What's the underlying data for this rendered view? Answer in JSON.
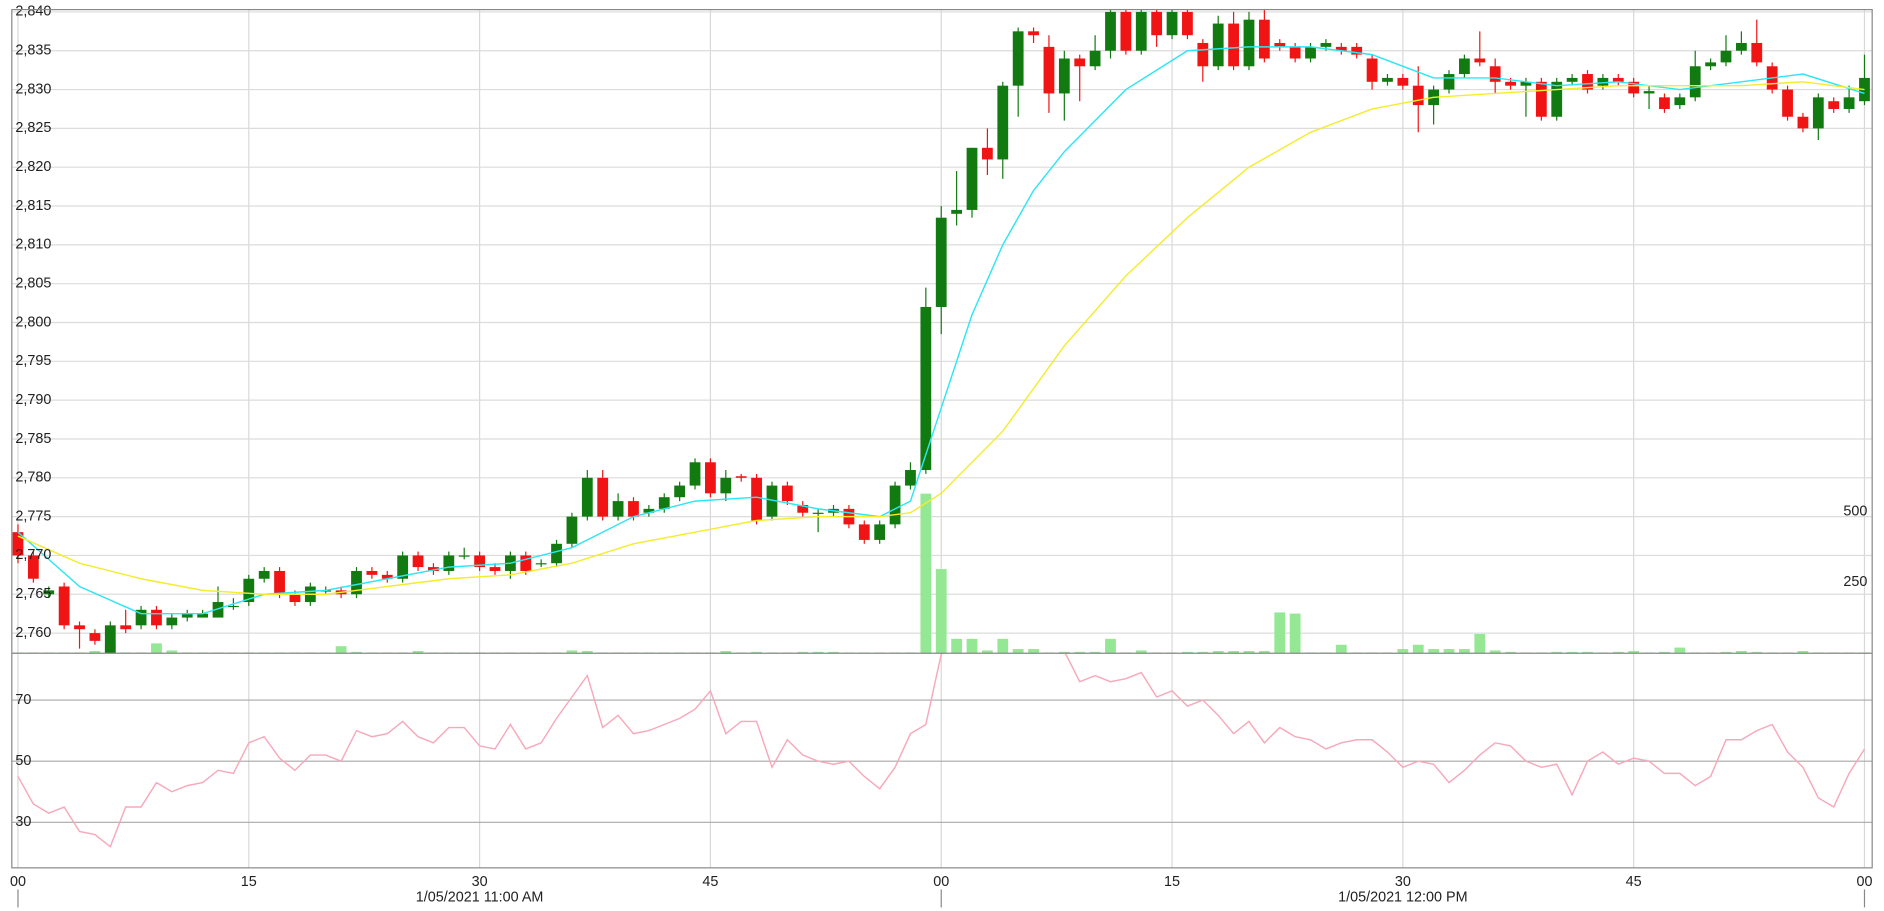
{
  "chart_data": [
    {
      "type": "candlestick",
      "x": [
        0,
        1,
        2,
        3,
        4,
        5,
        6,
        7,
        8,
        9,
        10,
        11,
        12,
        13,
        14,
        15,
        16,
        17,
        18,
        19,
        20,
        21,
        22,
        23,
        24,
        25,
        26,
        27,
        28,
        29,
        30,
        31,
        32,
        33,
        34,
        35,
        36,
        37,
        38,
        39,
        40,
        41,
        42,
        43,
        44,
        45,
        46,
        47,
        48,
        49,
        50,
        51,
        52,
        53,
        54,
        55,
        56,
        57,
        58,
        59,
        60,
        61,
        62,
        63,
        64,
        65,
        66,
        67,
        68,
        69,
        70,
        71,
        72,
        73,
        74,
        75,
        76,
        77,
        78,
        79,
        80,
        81,
        82,
        83,
        84,
        85,
        86,
        87,
        88,
        89,
        90,
        91,
        92,
        93,
        94,
        95,
        96,
        97,
        98,
        99,
        100,
        101,
        102,
        103,
        104,
        105,
        106,
        107,
        108,
        109,
        110,
        111,
        112,
        113,
        114,
        115,
        116,
        117,
        118,
        119,
        120
      ],
      "open": [
        2773,
        2770,
        2765,
        2766,
        2761,
        2760,
        2757,
        2761,
        2761,
        2763,
        2761,
        2762,
        2762,
        2762,
        2763.5,
        2764,
        2767,
        2768,
        2765,
        2764,
        2765.5,
        2765.5,
        2765,
        2768,
        2767.5,
        2767,
        2770,
        2768.5,
        2768,
        2770,
        2770,
        2768.5,
        2768,
        2770,
        2769,
        2769,
        2771.5,
        2775,
        2780,
        2775,
        2777,
        2775.5,
        2776,
        2777.5,
        2779,
        2782,
        2778,
        2780.2,
        2780,
        2775,
        2779,
        2776.5,
        2775.5,
        2775.5,
        2776,
        2774,
        2772,
        2774,
        2779,
        2781,
        2802,
        2814,
        2814.5,
        2822.5,
        2821,
        2830.5,
        2837.5,
        2835.5,
        2829.5,
        2834,
        2833,
        2835,
        2840,
        2835,
        2840,
        2837,
        2840,
        2836,
        2833,
        2838.5,
        2833,
        2839,
        2836,
        2835.5,
        2834,
        2835.5,
        2835.5,
        2835.5,
        2834,
        2831,
        2831.5,
        2830.5,
        2828,
        2830,
        2832,
        2834,
        2833,
        2831,
        2830.5,
        2831,
        2826.5,
        2831,
        2832,
        2830.5,
        2831.5,
        2831,
        2829.5,
        2829,
        2828,
        2829,
        2833,
        2833.5,
        2835,
        2836,
        2833,
        2830,
        2826.5,
        2825,
        2828.5,
        2827.5,
        2828.5
      ],
      "high": [
        2774,
        2770.5,
        2766,
        2766.5,
        2761.5,
        2760.5,
        2761.5,
        2763,
        2763.5,
        2763.5,
        2762.5,
        2763,
        2763,
        2766,
        2764.5,
        2767.5,
        2768.5,
        2768.5,
        2765.5,
        2766.5,
        2766,
        2766,
        2768.5,
        2768.5,
        2768,
        2770.5,
        2770.5,
        2769,
        2770.5,
        2771,
        2770.5,
        2769,
        2770.5,
        2770.5,
        2769.5,
        2772,
        2775.5,
        2781,
        2781,
        2778,
        2777.5,
        2776.5,
        2778,
        2779.5,
        2782.5,
        2782.5,
        2781,
        2780.5,
        2780.5,
        2779.5,
        2779.5,
        2777,
        2776,
        2776.5,
        2776.5,
        2774.5,
        2774.5,
        2779.5,
        2782,
        2804.5,
        2815,
        2819.5,
        2822.5,
        2825,
        2831,
        2838,
        2838,
        2837,
        2835,
        2834.5,
        2837,
        2841,
        2841,
        2841,
        2841,
        2841,
        2841,
        2836.5,
        2839.5,
        2840,
        2840,
        2841,
        2836.5,
        2836,
        2836,
        2836.5,
        2836,
        2836,
        2834.5,
        2832,
        2832,
        2833,
        2830.5,
        2832.5,
        2834.5,
        2837.5,
        2834,
        2831.5,
        2831.5,
        2831.5,
        2831.5,
        2832,
        2832.5,
        2832,
        2832,
        2831.5,
        2830.5,
        2829.5,
        2829.5,
        2835,
        2834,
        2837,
        2837.5,
        2839,
        2833.5,
        2830.5,
        2827,
        2829.5,
        2829,
        2830.5,
        2834.5
      ],
      "low": [
        2769,
        2766.5,
        2764.5,
        2760.5,
        2758,
        2758.5,
        2757,
        2760,
        2760.5,
        2760.5,
        2760.5,
        2761.5,
        2762,
        2762,
        2763,
        2763.5,
        2766.5,
        2764.5,
        2763.5,
        2763.5,
        2765,
        2764.5,
        2764.5,
        2767,
        2766.5,
        2766.5,
        2768,
        2767.5,
        2767.5,
        2769.5,
        2768,
        2767.5,
        2767,
        2767.5,
        2768.5,
        2768.5,
        2771,
        2774.5,
        2774.5,
        2774.5,
        2774.5,
        2775,
        2775.5,
        2777,
        2778.5,
        2777.5,
        2777,
        2779.5,
        2774,
        2774.5,
        2776.5,
        2775,
        2773,
        2775,
        2773.5,
        2771.5,
        2771.5,
        2773.5,
        2778.5,
        2780.5,
        2798.5,
        2812.5,
        2813.5,
        2819,
        2818.5,
        2826.5,
        2836,
        2827,
        2826,
        2828.5,
        2832.5,
        2834,
        2834.5,
        2834.5,
        2835.5,
        2836.5,
        2836.5,
        2831,
        2832.5,
        2832.5,
        2832.5,
        2833.5,
        2835,
        2833.5,
        2833.5,
        2835,
        2834.5,
        2834,
        2830,
        2830.5,
        2830,
        2824.5,
        2825.5,
        2829.5,
        2831.5,
        2833,
        2829.5,
        2830,
        2826.5,
        2826,
        2826,
        2830.5,
        2829.5,
        2830,
        2830.5,
        2829,
        2827.5,
        2827,
        2827.5,
        2828.5,
        2832.5,
        2833,
        2834.5,
        2833,
        2829.5,
        2826,
        2824.5,
        2823.5,
        2827,
        2827,
        2828
      ],
      "close": [
        2770,
        2767,
        2765.5,
        2761,
        2760.5,
        2759,
        2761,
        2760.5,
        2763,
        2761,
        2762,
        2762.5,
        2762.5,
        2764,
        2763.5,
        2767,
        2768,
        2765,
        2764,
        2766,
        2765.5,
        2765,
        2768,
        2767.5,
        2767,
        2770,
        2768.5,
        2768,
        2770,
        2770,
        2768.5,
        2768,
        2770,
        2768,
        2769,
        2771.5,
        2775,
        2780,
        2775,
        2777,
        2775,
        2776,
        2777.5,
        2779,
        2782,
        2778,
        2780,
        2780,
        2774.5,
        2779,
        2777,
        2775.5,
        2775.5,
        2776,
        2774,
        2772,
        2774,
        2779,
        2781,
        2802,
        2813.5,
        2814.5,
        2822.5,
        2821,
        2830.5,
        2837.5,
        2837,
        2829.5,
        2834,
        2833,
        2835,
        2840,
        2835,
        2840,
        2837,
        2840,
        2837,
        2833,
        2838.5,
        2833,
        2839,
        2834,
        2835.5,
        2834,
        2835.5,
        2836,
        2835,
        2834.5,
        2831,
        2831.5,
        2830.5,
        2828,
        2830,
        2832,
        2834,
        2833.5,
        2831,
        2830.5,
        2831,
        2826.5,
        2831,
        2831.5,
        2830,
        2831.5,
        2831,
        2829.5,
        2829.8,
        2827.5,
        2829,
        2833,
        2833.5,
        2835,
        2836,
        2833.5,
        2830,
        2826.5,
        2825,
        2829,
        2827.5,
        2829,
        2831.5
      ],
      "up_color": "#117a11",
      "down_color": "#f01414",
      "series": [
        {
          "color": "#2ee6f2",
          "x": [
            0,
            4,
            8,
            12,
            16,
            20,
            24,
            28,
            32,
            36,
            40,
            44,
            48,
            52,
            56,
            58,
            60,
            62,
            64,
            66,
            68,
            72,
            76,
            80,
            84,
            88,
            92,
            96,
            100,
            104,
            108,
            112,
            116,
            120
          ],
          "values": [
            2773,
            2766,
            2762.5,
            2762.5,
            2765,
            2765.5,
            2767,
            2768.5,
            2769,
            2771,
            2775,
            2777,
            2777.5,
            2776,
            2775,
            2777,
            2789,
            2801,
            2810,
            2817,
            2822,
            2830,
            2835,
            2835.5,
            2835.5,
            2834.5,
            2831.5,
            2831.5,
            2830.5,
            2831,
            2830,
            2831,
            2832,
            2829.5
          ]
        },
        {
          "color": "#f4ec2c",
          "x": [
            0,
            4,
            8,
            12,
            16,
            20,
            24,
            28,
            32,
            36,
            40,
            44,
            48,
            52,
            56,
            58,
            60,
            64,
            68,
            72,
            76,
            80,
            84,
            88,
            92,
            96,
            100,
            104,
            108,
            112,
            116,
            120
          ],
          "values": [
            2772.5,
            2769,
            2767,
            2765.5,
            2765,
            2765,
            2766,
            2767,
            2767.5,
            2769,
            2771.5,
            2773,
            2774.5,
            2775,
            2775,
            2775.5,
            2778,
            2786,
            2797,
            2806,
            2813.5,
            2820,
            2824.5,
            2827.5,
            2829,
            2829.5,
            2830,
            2830.5,
            2830.5,
            2830.5,
            2831,
            2830
          ]
        }
      ],
      "volume": {
        "axis": "y2",
        "color": "#94e894",
        "values": [
          3,
          3,
          3,
          3,
          3,
          8,
          35,
          3,
          3,
          35,
          10,
          3,
          3,
          3,
          3,
          3,
          3,
          3,
          3,
          3,
          3,
          25,
          5,
          3,
          3,
          3,
          8,
          3,
          3,
          3,
          3,
          3,
          3,
          3,
          3,
          3,
          10,
          8,
          3,
          3,
          3,
          3,
          3,
          3,
          3,
          3,
          8,
          3,
          5,
          3,
          3,
          5,
          5,
          5,
          3,
          3,
          3,
          3,
          3,
          563,
          297,
          51,
          51,
          10,
          51,
          15,
          15,
          3,
          5,
          5,
          5,
          51,
          3,
          10,
          3,
          3,
          5,
          5,
          8,
          8,
          8,
          8,
          144,
          140,
          3,
          3,
          30,
          3,
          3,
          3,
          15,
          30,
          15,
          15,
          15,
          68,
          10,
          5,
          3,
          3,
          5,
          5,
          5,
          3,
          5,
          8,
          3,
          5,
          20,
          3,
          3,
          5,
          8,
          5,
          3,
          3,
          8,
          3,
          3,
          3,
          3
        ]
      },
      "xlim": [
        -0.4,
        120.5
      ],
      "xticks": [
        {
          "value": 0,
          "label": "00"
        },
        {
          "value": 15,
          "label": "15"
        },
        {
          "value": 30,
          "label": "30"
        },
        {
          "value": 45,
          "label": "45"
        },
        {
          "value": 60,
          "label": "00"
        },
        {
          "value": 75,
          "label": "15"
        },
        {
          "value": 90,
          "label": "30"
        },
        {
          "value": 105,
          "label": "45"
        },
        {
          "value": 120,
          "label": "00"
        }
      ],
      "xgroups": [
        {
          "value": 30,
          "label": "1/05/2021 11:00 AM"
        },
        {
          "value": 90,
          "label": "1/05/2021 12:00 PM"
        }
      ],
      "xmajorticks": [
        0,
        60,
        120
      ],
      "ylim": [
        2757.4,
        2840.3
      ],
      "yticks": [
        {
          "value": 2760,
          "label": "2,760"
        },
        {
          "value": 2765,
          "label": "2,765"
        },
        {
          "value": 2770,
          "label": "2,770"
        },
        {
          "value": 2775,
          "label": "2,775"
        },
        {
          "value": 2780,
          "label": "2,780"
        },
        {
          "value": 2785,
          "label": "2,785"
        },
        {
          "value": 2790,
          "label": "2,790"
        },
        {
          "value": 2795,
          "label": "2,795"
        },
        {
          "value": 2800,
          "label": "2,800"
        },
        {
          "value": 2805,
          "label": "2,805"
        },
        {
          "value": 2810,
          "label": "2,810"
        },
        {
          "value": 2815,
          "label": "2,815"
        },
        {
          "value": 2820,
          "label": "2,820"
        },
        {
          "value": 2825,
          "label": "2,825"
        },
        {
          "value": 2830,
          "label": "2,830"
        },
        {
          "value": 2835,
          "label": "2,835"
        },
        {
          "value": 2840,
          "label": "2,840"
        }
      ],
      "y2lim": [
        0,
        2270
      ],
      "y2ticks": [
        250,
        500
      ],
      "grid": true
    },
    {
      "type": "line",
      "series": [
        {
          "color": "#f7a8ba",
          "values": [
            45,
            36,
            33,
            35,
            27,
            26,
            22,
            35,
            35,
            43,
            40,
            42,
            43,
            47,
            46,
            56,
            58,
            51,
            47,
            52,
            52,
            50,
            60,
            58,
            59,
            63,
            58,
            56,
            61,
            61,
            55,
            54,
            62,
            54,
            56,
            64,
            71,
            78,
            61,
            65,
            59,
            60,
            62,
            64,
            67,
            73,
            59,
            63,
            63,
            48,
            57,
            52,
            50,
            49,
            50,
            45,
            41,
            48,
            59,
            62,
            85,
            88,
            93,
            93,
            95,
            94,
            92,
            90,
            86,
            76,
            78,
            76,
            77,
            79,
            71,
            73,
            68,
            70,
            65,
            59,
            63,
            56,
            61,
            58,
            57,
            54,
            56,
            57,
            57,
            53,
            48,
            50,
            49,
            43,
            47,
            52,
            56,
            55,
            50,
            48,
            49,
            39,
            50,
            53,
            49,
            51,
            50,
            46,
            46,
            42,
            45,
            57,
            57,
            60,
            62,
            53,
            48,
            38,
            35,
            46,
            54
          ]
        }
      ],
      "ylim": [
        15.1,
        85.3
      ],
      "yticks": [
        30,
        50,
        70
      ],
      "grid": true
    }
  ]
}
